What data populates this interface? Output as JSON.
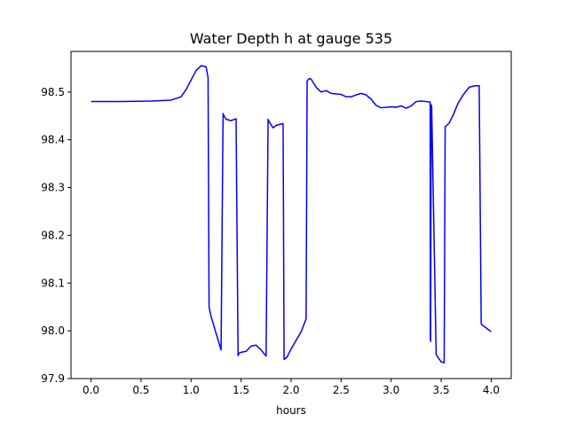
{
  "chart_data": {
    "type": "line",
    "title": "Water Depth h at gauge 535",
    "xlabel": "hours",
    "ylabel": "",
    "xlim": [
      -0.2,
      4.2
    ],
    "ylim": [
      97.9,
      98.585
    ],
    "xticks": [
      0.0,
      0.5,
      1.0,
      1.5,
      2.0,
      2.5,
      3.0,
      3.5,
      4.0
    ],
    "xtick_labels": [
      "0.0",
      "0.5",
      "1.0",
      "1.5",
      "2.0",
      "2.5",
      "3.0",
      "3.5",
      "4.0"
    ],
    "yticks": [
      97.9,
      98.0,
      98.1,
      98.2,
      98.3,
      98.4,
      98.5
    ],
    "ytick_labels": [
      "97.9",
      "98.0",
      "98.1",
      "98.2",
      "98.3",
      "98.4",
      "98.5"
    ],
    "grid": false,
    "legend": "none",
    "series": [
      {
        "color": "#0000ff",
        "x": [
          0.0,
          0.3,
          0.6,
          0.8,
          0.9,
          0.95,
          1.0,
          1.05,
          1.1,
          1.15,
          1.17,
          1.18,
          1.2,
          1.25,
          1.3,
          1.32,
          1.33,
          1.35,
          1.4,
          1.45,
          1.47,
          1.48,
          1.5,
          1.55,
          1.6,
          1.65,
          1.7,
          1.75,
          1.77,
          1.78,
          1.82,
          1.85,
          1.9,
          1.92,
          1.93,
          1.96,
          2.0,
          2.05,
          2.1,
          2.15,
          2.16,
          2.18,
          2.2,
          2.25,
          2.3,
          2.35,
          2.4,
          2.5,
          2.55,
          2.6,
          2.65,
          2.7,
          2.75,
          2.8,
          2.85,
          2.9,
          3.0,
          3.05,
          3.1,
          3.15,
          3.2,
          3.25,
          3.3,
          3.35,
          3.39,
          3.392,
          3.395,
          3.4,
          3.405,
          3.45,
          3.5,
          3.53,
          3.54,
          3.58,
          3.62,
          3.67,
          3.72,
          3.78,
          3.84,
          3.88,
          3.9,
          3.91,
          3.95,
          4.0
        ],
        "y": [
          98.48,
          98.48,
          98.481,
          98.483,
          98.49,
          98.505,
          98.525,
          98.545,
          98.555,
          98.553,
          98.53,
          98.05,
          98.03,
          97.995,
          97.96,
          98.455,
          98.45,
          98.443,
          98.44,
          98.444,
          97.948,
          97.953,
          97.955,
          97.957,
          97.968,
          97.97,
          97.96,
          97.947,
          98.443,
          98.438,
          98.425,
          98.43,
          98.433,
          98.434,
          97.94,
          97.945,
          97.962,
          97.98,
          97.998,
          98.025,
          98.523,
          98.528,
          98.527,
          98.51,
          98.5,
          98.503,
          98.497,
          98.495,
          98.49,
          98.49,
          98.494,
          98.497,
          98.494,
          98.485,
          98.472,
          98.467,
          98.469,
          98.468,
          98.471,
          98.466,
          98.471,
          98.48,
          98.481,
          98.48,
          98.479,
          97.982,
          97.978,
          98.473,
          98.471,
          97.95,
          97.935,
          97.933,
          98.427,
          98.435,
          98.452,
          98.477,
          98.494,
          98.51,
          98.513,
          98.513,
          98.015,
          98.012,
          98.006,
          97.998
        ]
      }
    ]
  }
}
